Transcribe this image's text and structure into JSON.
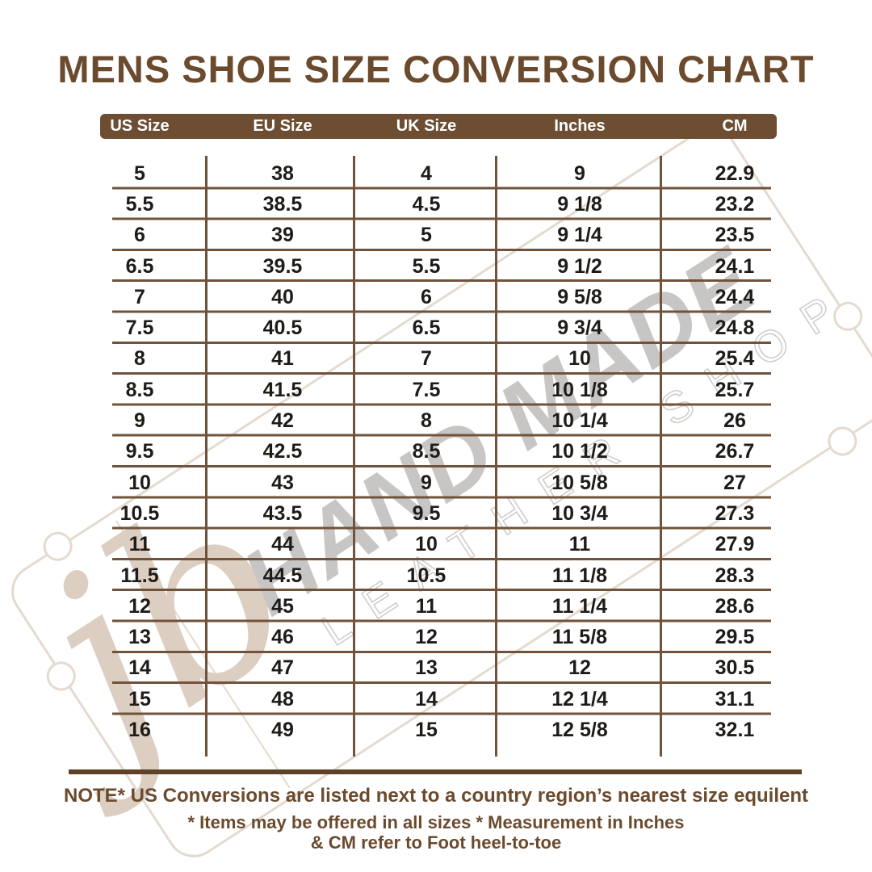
{
  "title": "MENS SHOE SIZE CONVERSION CHART",
  "table": {
    "columns": [
      "US Size",
      "EU Size",
      "UK Size",
      "Inches",
      "CM"
    ],
    "rows": [
      [
        "5",
        "38",
        "4",
        "9",
        "22.9"
      ],
      [
        "5.5",
        "38.5",
        "4.5",
        "9 1/8",
        "23.2"
      ],
      [
        "6",
        "39",
        "5",
        "9 1/4",
        "23.5"
      ],
      [
        "6.5",
        "39.5",
        "5.5",
        "9 1/2",
        "24.1"
      ],
      [
        "7",
        "40",
        "6",
        "9 5/8",
        "24.4"
      ],
      [
        "7.5",
        "40.5",
        "6.5",
        "9 3/4",
        "24.8"
      ],
      [
        "8",
        "41",
        "7",
        "10",
        "25.4"
      ],
      [
        "8.5",
        "41.5",
        "7.5",
        "10 1/8",
        "25.7"
      ],
      [
        "9",
        "42",
        "8",
        "10 1/4",
        "26"
      ],
      [
        "9.5",
        "42.5",
        "8.5",
        "10 1/2",
        "26.7"
      ],
      [
        "10",
        "43",
        "9",
        "10 5/8",
        "27"
      ],
      [
        "10.5",
        "43.5",
        "9.5",
        "10 3/4",
        "27.3"
      ],
      [
        "11",
        "44",
        "10",
        "11",
        "27.9"
      ],
      [
        "11.5",
        "44.5",
        "10.5",
        "11 1/8",
        "28.3"
      ],
      [
        "12",
        "45",
        "11",
        "11 1/4",
        "28.6"
      ],
      [
        "13",
        "46",
        "12",
        "11 5/8",
        "29.5"
      ],
      [
        "14",
        "47",
        "13",
        "12",
        "30.5"
      ],
      [
        "15",
        "48",
        "14",
        "12 1/4",
        "31.1"
      ],
      [
        "16",
        "49",
        "15",
        "12 5/8",
        "32.1"
      ]
    ],
    "column_keys": [
      "us-size",
      "eu-size",
      "uk-size",
      "inches",
      "cm"
    ]
  },
  "notes": {
    "line1": "NOTE* US Conversions are listed next to a country region’s nearest size equilent",
    "line2": "* Items may be offered in all sizes * Measurement in Inches",
    "line3": "& CM refer to Foot heel-to-toe"
  },
  "watermark": {
    "monogram": "jb",
    "line1": "HAND MADE",
    "line2": "LEATHER SHOP"
  },
  "colors": {
    "brown_text": "#6b4a2d",
    "header_bar": "#6d4e33",
    "table_line": "#70533a",
    "divider": "#5e4126",
    "cell_text": "#1e1b18",
    "watermark_beige": "#dccfc1",
    "watermark_gray": "#c8c6c4"
  }
}
